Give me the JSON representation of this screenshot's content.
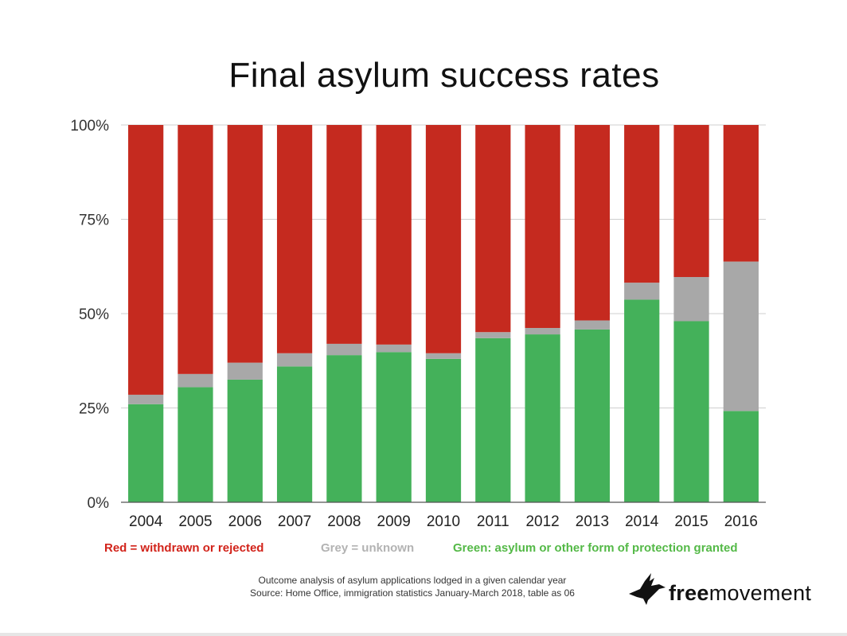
{
  "chart_data": {
    "type": "bar",
    "stacked": true,
    "title": "Final asylum success rates",
    "categories": [
      "2004",
      "2005",
      "2006",
      "2007",
      "2008",
      "2009",
      "2010",
      "2011",
      "2012",
      "2013",
      "2014",
      "2015",
      "2016"
    ],
    "series": [
      {
        "color": "#44b15a",
        "values": [
          26,
          30.5,
          32.5,
          36,
          39,
          39.8,
          38,
          43.5,
          44.5,
          45.8,
          53.7,
          48,
          24.2
        ]
      },
      {
        "color": "#a8a8a8",
        "values": [
          2.5,
          3.5,
          4.5,
          3.5,
          3,
          2,
          1.5,
          1.6,
          1.7,
          2.4,
          4.5,
          11.7,
          39.6
        ]
      },
      {
        "color": "#c52a1f",
        "values": [
          71.5,
          66,
          63,
          60.5,
          58,
          58.2,
          60.5,
          54.9,
          53.8,
          51.8,
          41.8,
          40.3,
          36.2
        ]
      }
    ],
    "ytick_labels": [
      "0%",
      "25%",
      "50%",
      "75%",
      "100%"
    ],
    "ylim": [
      0,
      100
    ],
    "grid": true
  },
  "legend": {
    "red": "Red = withdrawn or rejected",
    "grey": "Grey = unknown",
    "green": "Green: asylum or other form of protection granted"
  },
  "notes": {
    "line1": "Outcome analysis of asylum applications lodged in a given calendar year",
    "line2": "Source: Home Office, immigration statistics January-March 2018, table as 06"
  },
  "logo": {
    "bold_part": "free",
    "rest": "movement",
    "icon": "bird-icon"
  }
}
